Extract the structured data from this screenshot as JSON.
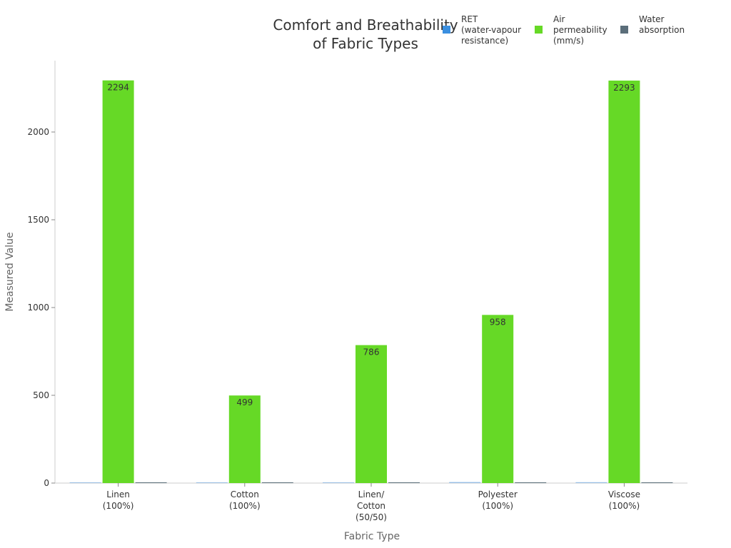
{
  "chart_data": {
    "type": "bar",
    "title": [
      "Comfort and Breathability",
      "of Fabric Types"
    ],
    "xlabel": "Fabric Type",
    "ylabel": "Measured Value",
    "ylim": [
      0,
      2400
    ],
    "yticks": [
      0,
      500,
      1000,
      1500,
      2000
    ],
    "grid": false,
    "legend_position": "top-right",
    "categories": [
      [
        "Linen",
        "(100%)"
      ],
      [
        "Cotton",
        "(100%)"
      ],
      [
        "Linen/",
        "Cotton",
        "(50/50)"
      ],
      [
        "Polyester",
        "(100%)"
      ],
      [
        "Viscose",
        "(100%)"
      ]
    ],
    "series": [
      {
        "name": [
          "RET",
          "(water-vapour",
          "resistance)"
        ],
        "color": "#3a8fe0",
        "values": [
          4,
          4,
          4,
          6,
          5
        ]
      },
      {
        "name": [
          "Air",
          "permeability",
          "(mm/s)"
        ],
        "color": "#66d926",
        "values": [
          2294,
          499,
          786,
          958,
          2293
        ],
        "data_labels": [
          "2294",
          "499",
          "786",
          "958",
          "2293"
        ]
      },
      {
        "name": [
          "Water",
          "absorption"
        ],
        "color": "#5b6e7a",
        "values": [
          0.3,
          0.3,
          0.3,
          0.1,
          0.5
        ]
      }
    ]
  }
}
